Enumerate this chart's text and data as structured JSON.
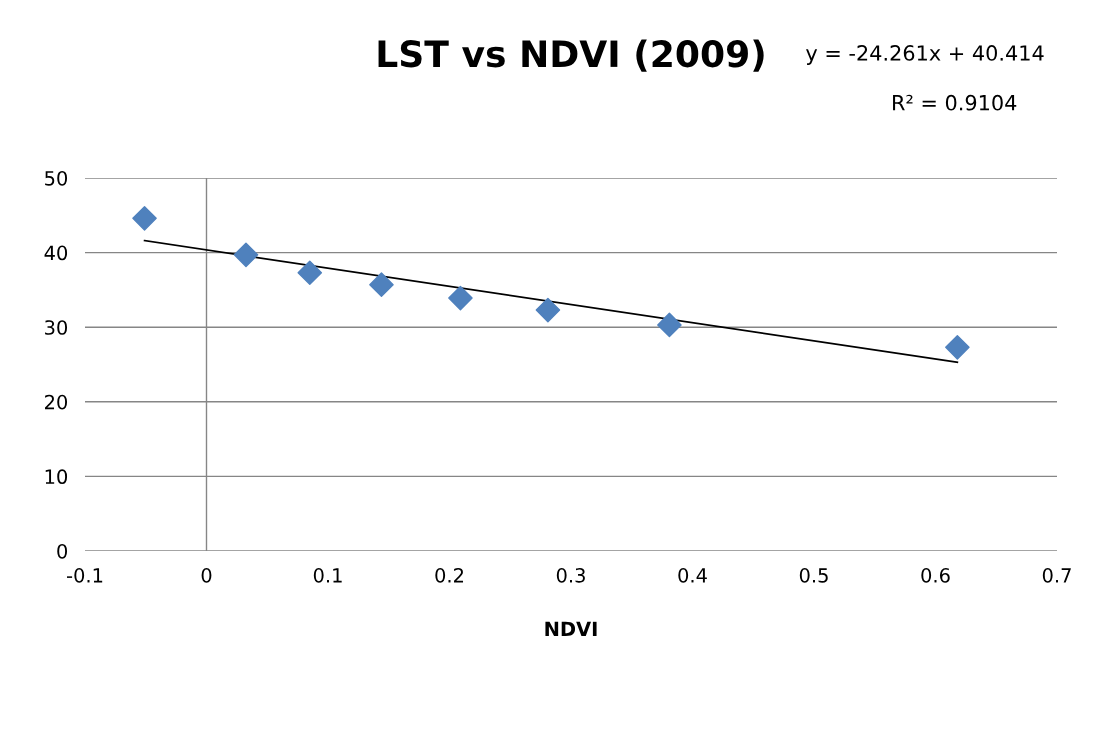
{
  "chart_data": {
    "type": "scatter",
    "title": "LST vs NDVI (2009)",
    "xlabel": "NDVI",
    "annotations": [
      "y = -24.261x + 40.414",
      "R² = 0.9104"
    ],
    "series": [
      {
        "color": "#4f81bd",
        "marker": "diamond",
        "x": [
          -0.051,
          0.0325,
          0.085,
          0.144,
          0.209,
          0.281,
          0.381,
          0.618
        ],
        "values": [
          44.6,
          39.7,
          37.3,
          35.7,
          33.9,
          32.3,
          30.3,
          27.3
        ]
      },
      {
        "type": "line",
        "color": "#000000",
        "marker": "none",
        "x": [
          -0.051,
          0.618
        ],
        "values": [
          41.6,
          25.3
        ]
      }
    ],
    "xlim": [
      -0.1,
      0.7
    ],
    "xticks": [
      -0.1,
      0,
      0.1,
      0.2,
      0.3,
      0.4,
      0.5,
      0.6,
      0.7
    ],
    "ylim": [
      0,
      50
    ],
    "yticks": [
      0,
      10,
      20,
      30,
      40,
      50
    ],
    "ref_lines": [
      {
        "axis": "x",
        "value": 0,
        "color": "#868686"
      }
    ],
    "grid": "y",
    "legend": false
  }
}
